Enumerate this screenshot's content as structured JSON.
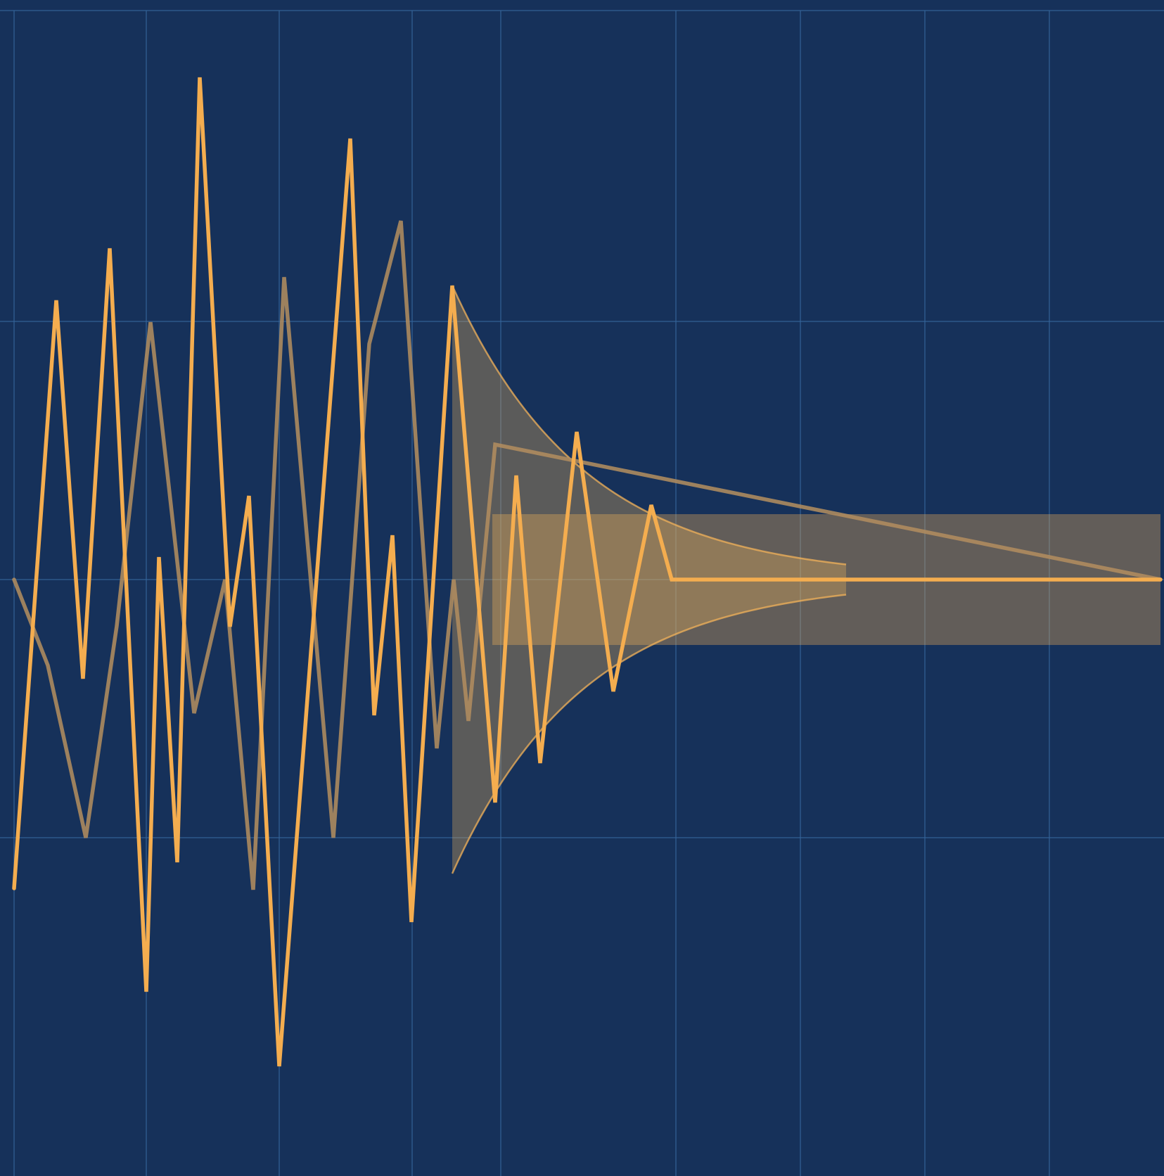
{
  "chart_data": {
    "type": "line",
    "title": "",
    "xlabel": "",
    "ylabel": "",
    "xlim": [
      0,
      1650
    ],
    "ylim": [
      -735,
      735
    ],
    "grid": true,
    "legend": "none",
    "colors": {
      "background": "#16315a",
      "grid": "#36669c",
      "primary": "#f4ad4f",
      "secondary": "#b18c5f",
      "band": "#f0b35a"
    },
    "grid_x": [
      20,
      208,
      397,
      586,
      712,
      961,
      1138,
      1315,
      1492
    ],
    "grid_y": [
      -367,
      0,
      367
    ],
    "series": [
      {
        "values": [
          [
            20,
            -439
          ],
          [
            80,
            397
          ],
          [
            118,
            -141
          ],
          [
            156,
            471
          ],
          [
            208,
            -586
          ],
          [
            226,
            32
          ],
          [
            252,
            -402
          ],
          [
            284,
            714
          ],
          [
            327,
            -67
          ],
          [
            354,
            119
          ],
          [
            397,
            -692
          ],
          [
            498,
            627
          ],
          [
            532,
            -193
          ],
          [
            558,
            63
          ],
          [
            585,
            -487
          ],
          [
            643,
            418
          ],
          [
            704,
            -317
          ],
          [
            734,
            148
          ],
          [
            768,
            -261
          ],
          [
            820,
            210
          ],
          [
            872,
            -159
          ],
          [
            926,
            106
          ],
          [
            955,
            0
          ],
          [
            1650,
            0
          ]
        ]
      },
      {
        "values": [
          [
            20,
            0
          ],
          [
            68,
            -122
          ],
          [
            122,
            -367
          ],
          [
            166,
            -66
          ],
          [
            214,
            366
          ],
          [
            276,
            -190
          ],
          [
            320,
            0
          ],
          [
            360,
            -441
          ],
          [
            404,
            430
          ],
          [
            474,
            -367
          ],
          [
            525,
            335
          ],
          [
            570,
            510
          ],
          [
            621,
            -240
          ],
          [
            645,
            0
          ],
          [
            666,
            -201
          ],
          [
            704,
            192
          ],
          [
            1650,
            0
          ]
        ]
      }
    ],
    "bands": [
      {
        "kind": "decaying-envelope",
        "x_start": 643,
        "x_end": 1210,
        "amplitude_start": 418,
        "decay_rate": 0.0053
      },
      {
        "kind": "steady-state",
        "x_start": 700,
        "x_end": 1650,
        "y_range": [
          -93,
          93
        ]
      }
    ]
  }
}
